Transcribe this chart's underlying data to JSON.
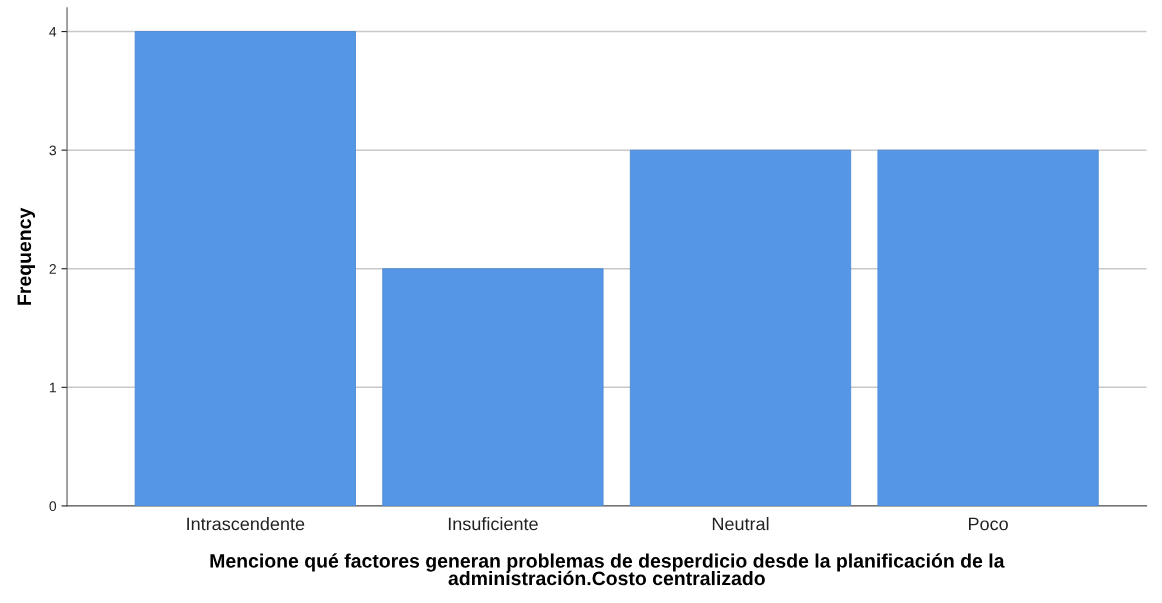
{
  "chart_data": {
    "type": "bar",
    "categories": [
      "Intrascendente",
      "Insuficiente",
      "Neutral",
      "Poco"
    ],
    "values": [
      4,
      2,
      3,
      3
    ],
    "color": "#5596e6",
    "xlabel": "Mencione qué factores generan problemas de desperdicio desde la planificación de la\nadministración.Costo centralizado",
    "ylabel": "Frequency",
    "ylim": [
      0,
      4.2
    ],
    "yticks": [
      0,
      1,
      2,
      3,
      4
    ],
    "grid": "y",
    "legend": false
  }
}
